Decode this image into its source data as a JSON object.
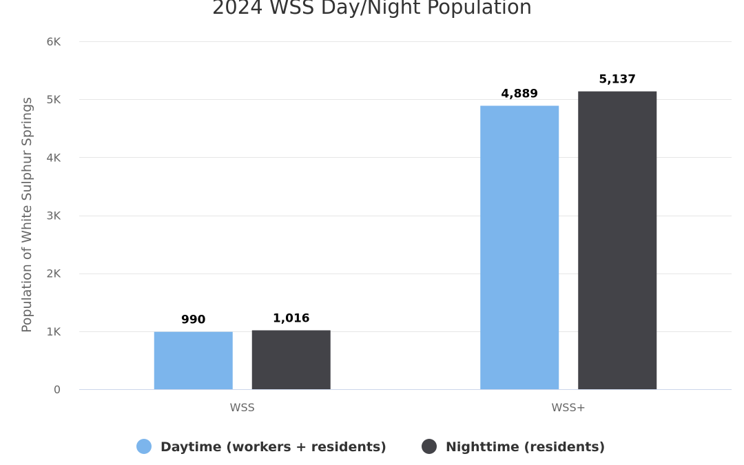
{
  "chart_data": {
    "type": "bar",
    "title": "2024 WSS Day/Night Population",
    "ylabel": "Population of White Sulphur Springs",
    "xlabel": "",
    "categories": [
      "WSS",
      "WSS+"
    ],
    "ylim": [
      0,
      6000
    ],
    "y_ticks": [
      {
        "value": 0,
        "label": "0"
      },
      {
        "value": 1000,
        "label": "1K"
      },
      {
        "value": 2000,
        "label": "2K"
      },
      {
        "value": 3000,
        "label": "3K"
      },
      {
        "value": 4000,
        "label": "4K"
      },
      {
        "value": 5000,
        "label": "5K"
      },
      {
        "value": 6000,
        "label": "6K"
      }
    ],
    "grid": true,
    "legend_position": "bottom-center",
    "series": [
      {
        "name": "Daytime (workers + residents)",
        "color": "#7cb5ec",
        "values": [
          990,
          4889
        ],
        "value_labels": [
          "990",
          "4,889"
        ]
      },
      {
        "name": "Nighttime (residents)",
        "color": "#434348",
        "values": [
          1016,
          5137
        ],
        "value_labels": [
          "1,016",
          "5,137"
        ]
      }
    ]
  }
}
